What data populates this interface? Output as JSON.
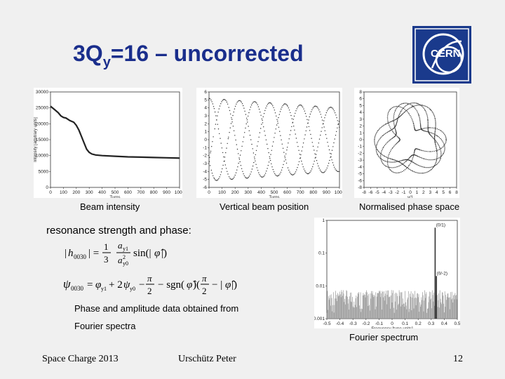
{
  "slide": {
    "title_main": "3Q",
    "title_sub": "y",
    "title_rest": "=16 – uncorrected",
    "logo_text": "CERN",
    "section_heading": "resonance strength and phase:",
    "phase_note_line1": "Phase and amplitude data obtained from",
    "phase_note_line2": "Fourier spectra"
  },
  "captions": {
    "beam_intensity": "Beam intensity",
    "vertical_position": "Vertical beam position",
    "phase_space": "Normalised phase space",
    "fourier": "Fourier spectrum"
  },
  "footer": {
    "conference": "Space Charge 2013",
    "author": "Urschütz Peter",
    "page": "12"
  },
  "chart_data": [
    {
      "type": "line",
      "name": "beam-intensity",
      "xlabel": "Turns",
      "ylabel": "Intensity [arbitrary units]",
      "xlim": [
        0,
        1000
      ],
      "ylim": [
        0,
        30000
      ],
      "xticks": [
        "0",
        "100",
        "200",
        "300",
        "400",
        "500",
        "600",
        "700",
        "800",
        "900",
        "1000"
      ],
      "yticks": [
        "0",
        "5000",
        "10000",
        "15000",
        "20000",
        "25000",
        "30000"
      ],
      "x": [
        0,
        30,
        60,
        80,
        100,
        120,
        150,
        180,
        200,
        220,
        240,
        260,
        280,
        300,
        320,
        350,
        400,
        500,
        600,
        700,
        800,
        900,
        1000
      ],
      "y": [
        25500,
        24500,
        23500,
        22500,
        22000,
        21800,
        21000,
        20500,
        19500,
        18000,
        16000,
        14000,
        12000,
        11000,
        10500,
        10200,
        10000,
        9800,
        9600,
        9500,
        9400,
        9300,
        9200
      ]
    },
    {
      "type": "line",
      "name": "vertical-beam-position",
      "xlabel": "Turns",
      "ylabel": "Normalized Amplitude",
      "xlim": [
        0,
        1000
      ],
      "ylim": [
        -6,
        6
      ],
      "xticks": [
        "0",
        "100",
        "200",
        "300",
        "400",
        "500",
        "600",
        "700",
        "800",
        "900",
        "1000"
      ],
      "yticks": [
        "-6",
        "-5",
        "-4",
        "-3",
        "-2",
        "-1",
        "0",
        "1",
        "2",
        "3",
        "4",
        "5",
        "6"
      ],
      "series_shape": {
        "amplitude_start": 5.2,
        "amplitude_end": 4.0,
        "beat_period_turns": 350
      }
    },
    {
      "type": "scatter",
      "name": "normalised-phase-space",
      "xlabel": "y/1",
      "ylabel": "yn'",
      "xlim": [
        -8,
        8
      ],
      "ylim": [
        -8,
        8
      ],
      "xticks": [
        "-8",
        "-6",
        "-5",
        "-4",
        "-3",
        "-2",
        "-1",
        "0",
        "1",
        "2",
        "3",
        "4",
        "5",
        "6",
        "8"
      ],
      "yticks": [
        "-8",
        "-6",
        "-5",
        "-4",
        "-3",
        "-2",
        "-1",
        "0",
        "1",
        "2",
        "3",
        "4",
        "5",
        "6",
        "8"
      ],
      "series_shape": {
        "lobes": 3,
        "outer_radius": 6.2,
        "inner_radius": 1.8
      }
    },
    {
      "type": "bar",
      "name": "fourier-spectrum",
      "xlabel": "Frequency [tune units]",
      "ylabel": "Normalised Amplitude",
      "xlim": [
        -0.5,
        0.5
      ],
      "ylim_log": [
        0.001,
        1
      ],
      "xticks": [
        "-0.5",
        "-0.4",
        "-0.3",
        "-0.2",
        "-0.1",
        "0",
        "0.1",
        "0.2",
        "0.3",
        "0.4",
        "0.5"
      ],
      "yticks": [
        "0.001",
        "0.01",
        "0.1",
        "1"
      ],
      "peaks": [
        {
          "label": "(0/1)",
          "x": 0.33,
          "y": 0.6
        },
        {
          "label": "(0/-2)",
          "x": 0.34,
          "y": 0.02
        }
      ]
    }
  ]
}
